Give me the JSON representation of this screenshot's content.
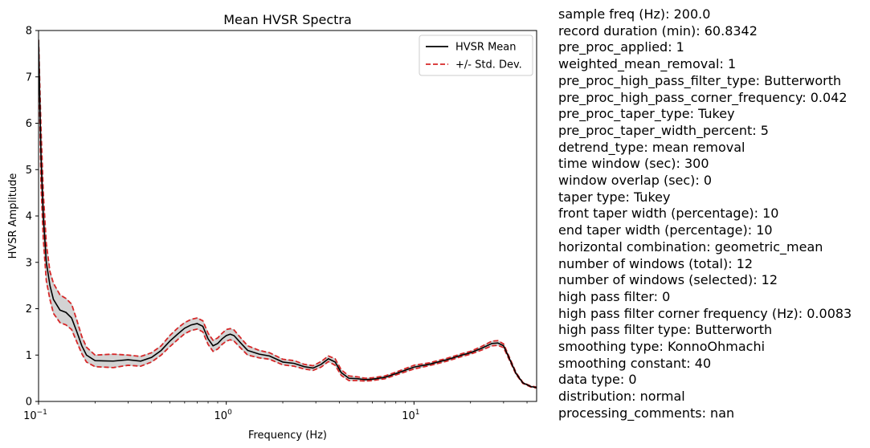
{
  "chart_data": {
    "type": "line",
    "title": "Mean HVSR Spectra",
    "xlabel": "Frequency (Hz)",
    "ylabel": "HVSR Amplitude",
    "xscale": "log",
    "xlim": [
      0.1,
      45
    ],
    "ylim": [
      0,
      8
    ],
    "yticks": [
      "0",
      "1",
      "2",
      "3",
      "4",
      "5",
      "6",
      "7",
      "8"
    ],
    "xticks": [
      {
        "base": "10",
        "exp": "−1"
      },
      {
        "base": "10",
        "exp": "0"
      },
      {
        "base": "10",
        "exp": "1"
      }
    ],
    "legend_position": "top-right",
    "legend": [
      {
        "label": "HVSR Mean",
        "style": "solid",
        "color": "#000000"
      },
      {
        "label": "+/- Std. Dev.",
        "style": "dashed",
        "color": "#d62728"
      }
    ],
    "colors": {
      "mean": "#000000",
      "std": "#d62728",
      "band": "#d3d3d3"
    },
    "x": [
      0.1,
      0.103,
      0.106,
      0.11,
      0.115,
      0.12,
      0.13,
      0.14,
      0.15,
      0.16,
      0.17,
      0.18,
      0.2,
      0.25,
      0.3,
      0.35,
      0.4,
      0.45,
      0.5,
      0.55,
      0.6,
      0.65,
      0.7,
      0.75,
      0.8,
      0.85,
      0.9,
      0.95,
      1.0,
      1.05,
      1.1,
      1.2,
      1.3,
      1.5,
      1.7,
      2.0,
      2.3,
      2.6,
      2.9,
      3.2,
      3.5,
      3.8,
      4.1,
      4.5,
      5,
      5.5,
      6,
      7,
      8,
      10,
      12,
      15,
      18,
      20,
      23,
      26,
      28,
      30,
      32,
      35,
      38,
      42,
      45
    ],
    "series": [
      {
        "name": "HVSR Mean",
        "values": [
          7.8,
          5.3,
          4.0,
          3.0,
          2.5,
          2.2,
          1.97,
          1.92,
          1.8,
          1.5,
          1.2,
          1.0,
          0.88,
          0.87,
          0.9,
          0.87,
          0.95,
          1.1,
          1.3,
          1.45,
          1.58,
          1.65,
          1.68,
          1.62,
          1.35,
          1.2,
          1.25,
          1.35,
          1.42,
          1.45,
          1.42,
          1.25,
          1.1,
          1.02,
          0.98,
          0.85,
          0.82,
          0.75,
          0.72,
          0.8,
          0.92,
          0.85,
          0.62,
          0.5,
          0.49,
          0.47,
          0.48,
          0.52,
          0.6,
          0.74,
          0.8,
          0.9,
          1.0,
          1.05,
          1.15,
          1.25,
          1.26,
          1.2,
          0.95,
          0.6,
          0.4,
          0.32,
          0.3
        ]
      },
      {
        "name": "+/- Std. Dev.",
        "role": "upper",
        "values": [
          7.8,
          5.9,
          4.5,
          3.4,
          2.8,
          2.55,
          2.3,
          2.22,
          2.1,
          1.75,
          1.4,
          1.17,
          1.0,
          1.02,
          1.0,
          0.97,
          1.05,
          1.2,
          1.42,
          1.58,
          1.7,
          1.77,
          1.8,
          1.74,
          1.47,
          1.32,
          1.37,
          1.47,
          1.55,
          1.57,
          1.54,
          1.36,
          1.2,
          1.1,
          1.05,
          0.91,
          0.88,
          0.8,
          0.77,
          0.86,
          0.98,
          0.92,
          0.68,
          0.55,
          0.53,
          0.5,
          0.51,
          0.55,
          0.63,
          0.78,
          0.83,
          0.93,
          1.03,
          1.08,
          1.19,
          1.3,
          1.31,
          1.24,
          0.98,
          0.62,
          0.41,
          0.33,
          0.31
        ]
      },
      {
        "name": "+/- Std. Dev.",
        "role": "lower",
        "values": [
          7.8,
          4.7,
          3.5,
          2.6,
          2.2,
          1.9,
          1.7,
          1.65,
          1.55,
          1.28,
          1.03,
          0.85,
          0.75,
          0.73,
          0.78,
          0.76,
          0.85,
          1.0,
          1.18,
          1.33,
          1.46,
          1.53,
          1.56,
          1.5,
          1.23,
          1.08,
          1.13,
          1.23,
          1.3,
          1.33,
          1.3,
          1.14,
          1.0,
          0.94,
          0.91,
          0.79,
          0.76,
          0.7,
          0.67,
          0.74,
          0.86,
          0.78,
          0.56,
          0.45,
          0.45,
          0.44,
          0.45,
          0.49,
          0.57,
          0.7,
          0.77,
          0.87,
          0.97,
          1.02,
          1.11,
          1.2,
          1.21,
          1.16,
          0.92,
          0.58,
          0.39,
          0.31,
          0.29
        ]
      }
    ]
  },
  "info_lines": [
    "sample freq (Hz): 200.0",
    "record duration (min): 60.8342",
    "pre_proc_applied: 1",
    "weighted_mean_removal: 1",
    "pre_proc_high_pass_filter_type: Butterworth",
    "pre_proc_high_pass_corner_frequency: 0.042",
    "pre_proc_taper_type: Tukey",
    "pre_proc_taper_width_percent: 5",
    "detrend_type: mean removal",
    "time window (sec): 300",
    "window overlap (sec): 0",
    "taper type: Tukey",
    "front taper width (percentage): 10",
    "end taper width (percentage): 10",
    "horizontal combination: geometric_mean",
    "number of windows (total): 12",
    "number of windows (selected): 12",
    "high pass filter: 0",
    "high pass filter corner frequency (Hz): 0.0083",
    "high pass filter type: Butterworth",
    "smoothing type: KonnoOhmachi",
    "smoothing constant: 40",
    "data type: 0",
    "distribution: normal",
    "processing_comments: nan"
  ]
}
